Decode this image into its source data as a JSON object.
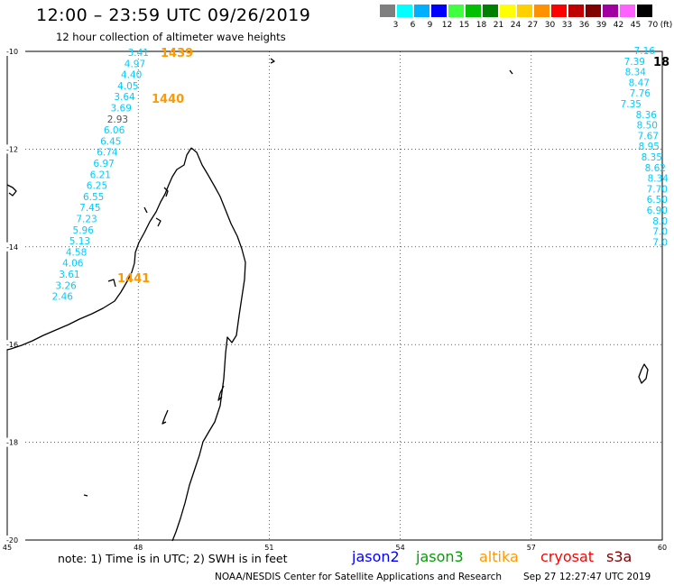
{
  "header": {
    "title": "12:00 – 23:59 UTC 09/26/2019",
    "subtitle": "12 hour collection of altimeter wave heights"
  },
  "legend": {
    "unit": "(ft)",
    "bins": [
      {
        "label": "3",
        "color": "#7f7f7f"
      },
      {
        "label": "6",
        "color": "#00ffff"
      },
      {
        "label": "9",
        "color": "#00b0ff"
      },
      {
        "label": "12",
        "color": "#0000ff"
      },
      {
        "label": "15",
        "color": "#40ff40"
      },
      {
        "label": "18",
        "color": "#00c000"
      },
      {
        "label": "21",
        "color": "#008000"
      },
      {
        "label": "24",
        "color": "#ffff00"
      },
      {
        "label": "27",
        "color": "#ffd000"
      },
      {
        "label": "30",
        "color": "#ff9000"
      },
      {
        "label": "33",
        "color": "#ff0000"
      },
      {
        "label": "36",
        "color": "#c00000"
      },
      {
        "label": "39",
        "color": "#800000"
      },
      {
        "label": "42",
        "color": "#a000a0"
      },
      {
        "label": "45",
        "color": "#ff60ff"
      },
      {
        "label": "70",
        "color": "#000000"
      }
    ]
  },
  "map": {
    "lon_range": [
      45,
      60
    ],
    "lat_range": [
      -20,
      -10
    ],
    "lon_ticks": [
      "45",
      "48",
      "51",
      "54",
      "57",
      "60"
    ],
    "lat_ticks": [
      "-10",
      "-12",
      "-14",
      "-16",
      "-18",
      "-20"
    ],
    "track_west": {
      "color": "#00ccff",
      "values": [
        "3.41",
        "4.97",
        "4.40",
        "4.05",
        "3.64",
        "3.69",
        "2.93",
        "6.06",
        "6.45",
        "6.74",
        "6.97",
        "6.21",
        "6.25",
        "6.55",
        "7.45",
        "7.23",
        "5.96",
        "5.13",
        "4.58",
        "4.06",
        "3.61",
        "3.26",
        "2.46"
      ],
      "highlight_index": 6,
      "highlight_color": "#555555"
    },
    "track_east": {
      "color": "#00ccff",
      "values": [
        "7.16",
        "7.39",
        "8.34",
        "8.47",
        "7.76",
        "7.35",
        "8.36",
        "8.50",
        "7.67",
        "8.95",
        "8.35",
        "8.62",
        "8.34",
        "7.70",
        "6.50",
        "6.90",
        "8.0",
        "7.0",
        "7.0"
      ]
    },
    "time_labels": [
      {
        "text": "1439",
        "color": "#ff9900"
      },
      {
        "text": "1440",
        "color": "#ff9900"
      },
      {
        "text": "1441",
        "color": "#ff9900"
      },
      {
        "text": "18",
        "color": "#000000"
      }
    ]
  },
  "footer": {
    "note": "note: 1) Time is in UTC; 2) SWH is in feet",
    "satellites": [
      {
        "name": "jason2",
        "color": "#0000ff"
      },
      {
        "name": "jason3",
        "color": "#00a000"
      },
      {
        "name": "altika",
        "color": "#ff9900"
      },
      {
        "name": "cryosat",
        "color": "#ff0000"
      },
      {
        "name": "s3a",
        "color": "#800000"
      }
    ],
    "credit": "NOAA/NESDIS Center for Satellite Applications and Research",
    "timestamp": "Sep 27 12:27:47 UTC 2019"
  }
}
